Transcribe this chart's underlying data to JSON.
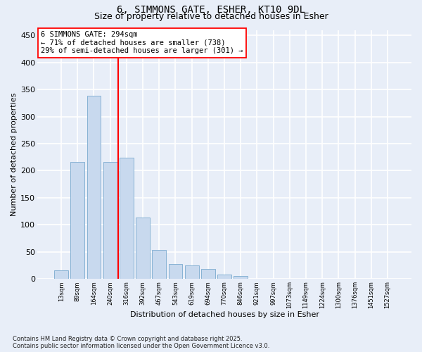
{
  "title_line1": "6, SIMMONS GATE, ESHER, KT10 9DL",
  "title_line2": "Size of property relative to detached houses in Esher",
  "xlabel": "Distribution of detached houses by size in Esher",
  "ylabel": "Number of detached properties",
  "categories": [
    "13sqm",
    "89sqm",
    "164sqm",
    "240sqm",
    "316sqm",
    "392sqm",
    "467sqm",
    "543sqm",
    "619sqm",
    "694sqm",
    "770sqm",
    "846sqm",
    "921sqm",
    "997sqm",
    "1073sqm",
    "1149sqm",
    "1224sqm",
    "1300sqm",
    "1376sqm",
    "1451sqm",
    "1527sqm"
  ],
  "values": [
    16,
    216,
    338,
    216,
    224,
    113,
    54,
    28,
    25,
    19,
    8,
    6,
    1,
    1,
    1,
    0,
    0,
    0,
    1,
    0,
    1
  ],
  "bar_color": "#c8d9ee",
  "bar_edge_color": "#7aaacf",
  "vline_color": "red",
  "vline_position": 3.5,
  "annotation_text": "6 SIMMONS GATE: 294sqm\n← 71% of detached houses are smaller (738)\n29% of semi-detached houses are larger (301) →",
  "annotation_box_color": "white",
  "annotation_box_edge": "red",
  "ylim": [
    0,
    460
  ],
  "yticks": [
    0,
    50,
    100,
    150,
    200,
    250,
    300,
    350,
    400,
    450
  ],
  "bg_color": "#e8eef8",
  "grid_color": "white",
  "footnote": "Contains HM Land Registry data © Crown copyright and database right 2025.\nContains public sector information licensed under the Open Government Licence v3.0."
}
